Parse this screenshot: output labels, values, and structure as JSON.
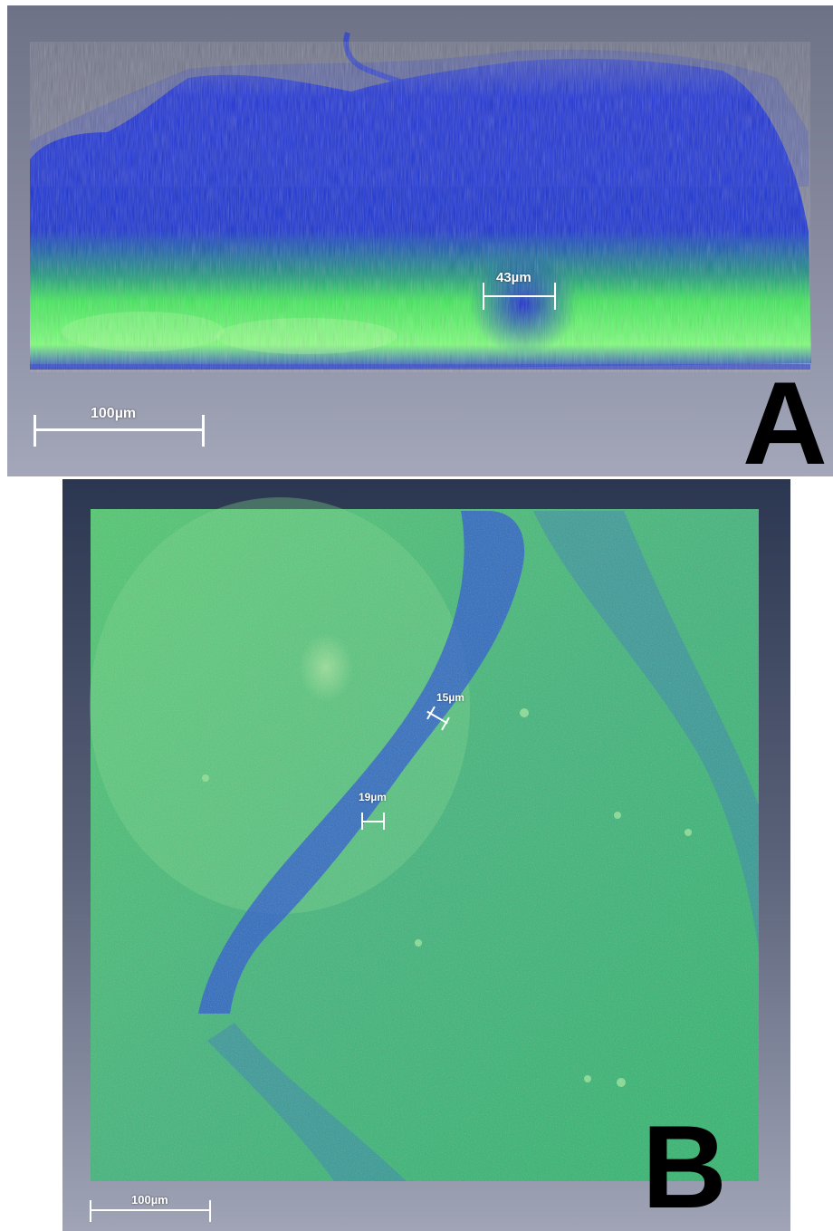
{
  "panel_a": {
    "letter": "A",
    "scalebar_label": "100µm",
    "measurement_label": "43µm"
  },
  "panel_b": {
    "letter": "B",
    "scalebar_label": "100µm",
    "measurement_1_label": "15µm",
    "measurement_2_label": "19µm"
  },
  "colors": {
    "biofilm_blue": "#1a2fd6",
    "biofilm_green": "#3cff4c",
    "background_gray": "#8a8da2"
  }
}
